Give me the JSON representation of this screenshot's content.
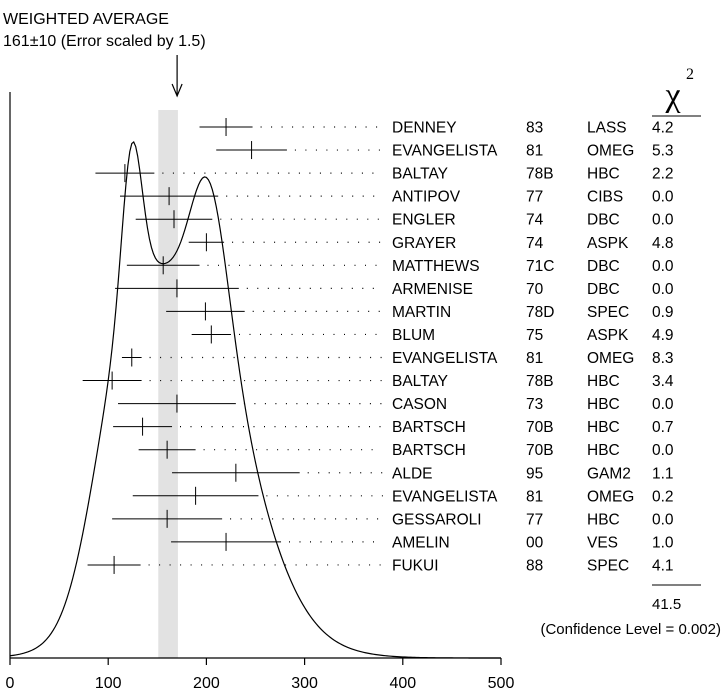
{
  "chart_data": {
    "type": "ideogram",
    "title": "WEIGHTED AVERAGE",
    "subtitle": "161±10 (Error scaled by 1.5)",
    "weighted_average": {
      "value": 161,
      "error": 10
    },
    "x_ticks": [
      0,
      100,
      200,
      300,
      400,
      500
    ],
    "xlim": [
      0,
      500
    ],
    "chi2_header": "χ",
    "chi2_exponent": "2",
    "chi2_total": "41.5",
    "confidence_level": "(Confidence Level = 0.002)",
    "measurements": [
      {
        "author": "DENNEY",
        "year": "83",
        "tech": "LASS",
        "chi2": "4.2",
        "value": 220,
        "error": 27
      },
      {
        "author": "EVANGELISTA",
        "year": "81",
        "tech": "OMEG",
        "chi2": "5.3",
        "value": 246,
        "error": 36
      },
      {
        "author": "BALTAY",
        "year": "78B",
        "tech": "HBC",
        "chi2": "2.2",
        "value": 117,
        "error": 30
      },
      {
        "author": "ANTIPOV",
        "year": "77",
        "tech": "CIBS",
        "chi2": "0.0",
        "value": 162,
        "error": 50
      },
      {
        "author": "ENGLER",
        "year": "74",
        "tech": "DBC",
        "chi2": "0.0",
        "value": 167,
        "error": 39
      },
      {
        "author": "GRAYER",
        "year": "74",
        "tech": "ASPK",
        "chi2": "4.8",
        "value": 200,
        "error": 18
      },
      {
        "author": "MATTHEWS",
        "year": "71C",
        "tech": "DBC",
        "chi2": "0.0",
        "value": 156,
        "error": 37
      },
      {
        "author": "ARMENISE",
        "year": "70",
        "tech": "DBC",
        "chi2": "0.0",
        "value": 170,
        "error": 63
      },
      {
        "author": "MARTIN",
        "year": "78D",
        "tech": "SPEC",
        "chi2": "0.9",
        "value": 199,
        "error": 40
      },
      {
        "author": "BLUM",
        "year": "75",
        "tech": "ASPK",
        "chi2": "4.9",
        "value": 205,
        "error": 20
      },
      {
        "author": "EVANGELISTA",
        "year": "81",
        "tech": "OMEG",
        "chi2": "8.3",
        "value": 124,
        "error": 10
      },
      {
        "author": "BALTAY",
        "year": "78B",
        "tech": "HBC",
        "chi2": "3.4",
        "value": 104,
        "error": 30
      },
      {
        "author": "CASON",
        "year": "73",
        "tech": "HBC",
        "chi2": "0.0",
        "value": 170,
        "error": 60
      },
      {
        "author": "BARTSCH",
        "year": "70B",
        "tech": "HBC",
        "chi2": "0.7",
        "value": 135,
        "error": 30
      },
      {
        "author": "BARTSCH",
        "year": "70B",
        "tech": "HBC",
        "chi2": "0.0",
        "value": 160,
        "error": 29
      },
      {
        "author": "ALDE",
        "year": "95",
        "tech": "GAM2",
        "chi2": "1.1",
        "value": 230,
        "error": 65
      },
      {
        "author": "EVANGELISTA",
        "year": "81",
        "tech": "OMEG",
        "chi2": "0.2",
        "value": 189,
        "error": 64
      },
      {
        "author": "GESSAROLI",
        "year": "77",
        "tech": "HBC",
        "chi2": "0.0",
        "value": 160,
        "error": 56
      },
      {
        "author": "AMELIN",
        "year": "00",
        "tech": "VES",
        "chi2": "1.0",
        "value": 220,
        "error": 56
      },
      {
        "author": "FUKUI",
        "year": "88",
        "tech": "SPEC",
        "chi2": "4.1",
        "value": 106,
        "error": 27
      }
    ]
  }
}
